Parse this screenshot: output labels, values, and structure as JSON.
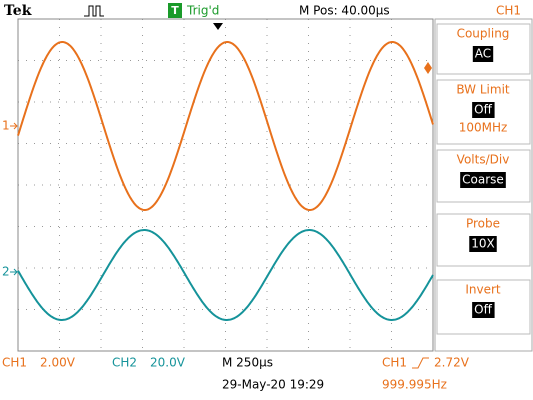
{
  "header": {
    "brand": "Tek",
    "trigger_icon": "T",
    "trigger_status": "Trig'd",
    "position": "M Pos: 40.00µs",
    "channel": "CH1"
  },
  "markers": {
    "ch1": "1",
    "ch2": "2"
  },
  "menu": [
    {
      "label": "Coupling",
      "value": "AC"
    },
    {
      "label": "BW Limit",
      "value": "Off",
      "detail": "100MHz"
    },
    {
      "label": "Volts/Div",
      "value": "Coarse"
    },
    {
      "label": "Probe",
      "value": "10X"
    },
    {
      "label": "Invert",
      "value": "Off"
    }
  ],
  "status": {
    "ch1_label": "CH1",
    "ch1_scale": "2.00V",
    "ch2_label": "CH2",
    "ch2_scale": "20.0V",
    "timebase": "M 250µs",
    "trigger_source": "CH1",
    "trigger_level": "2.72V",
    "date": "29-May-20 19:29",
    "frequency": "999.995Hz"
  }
}
